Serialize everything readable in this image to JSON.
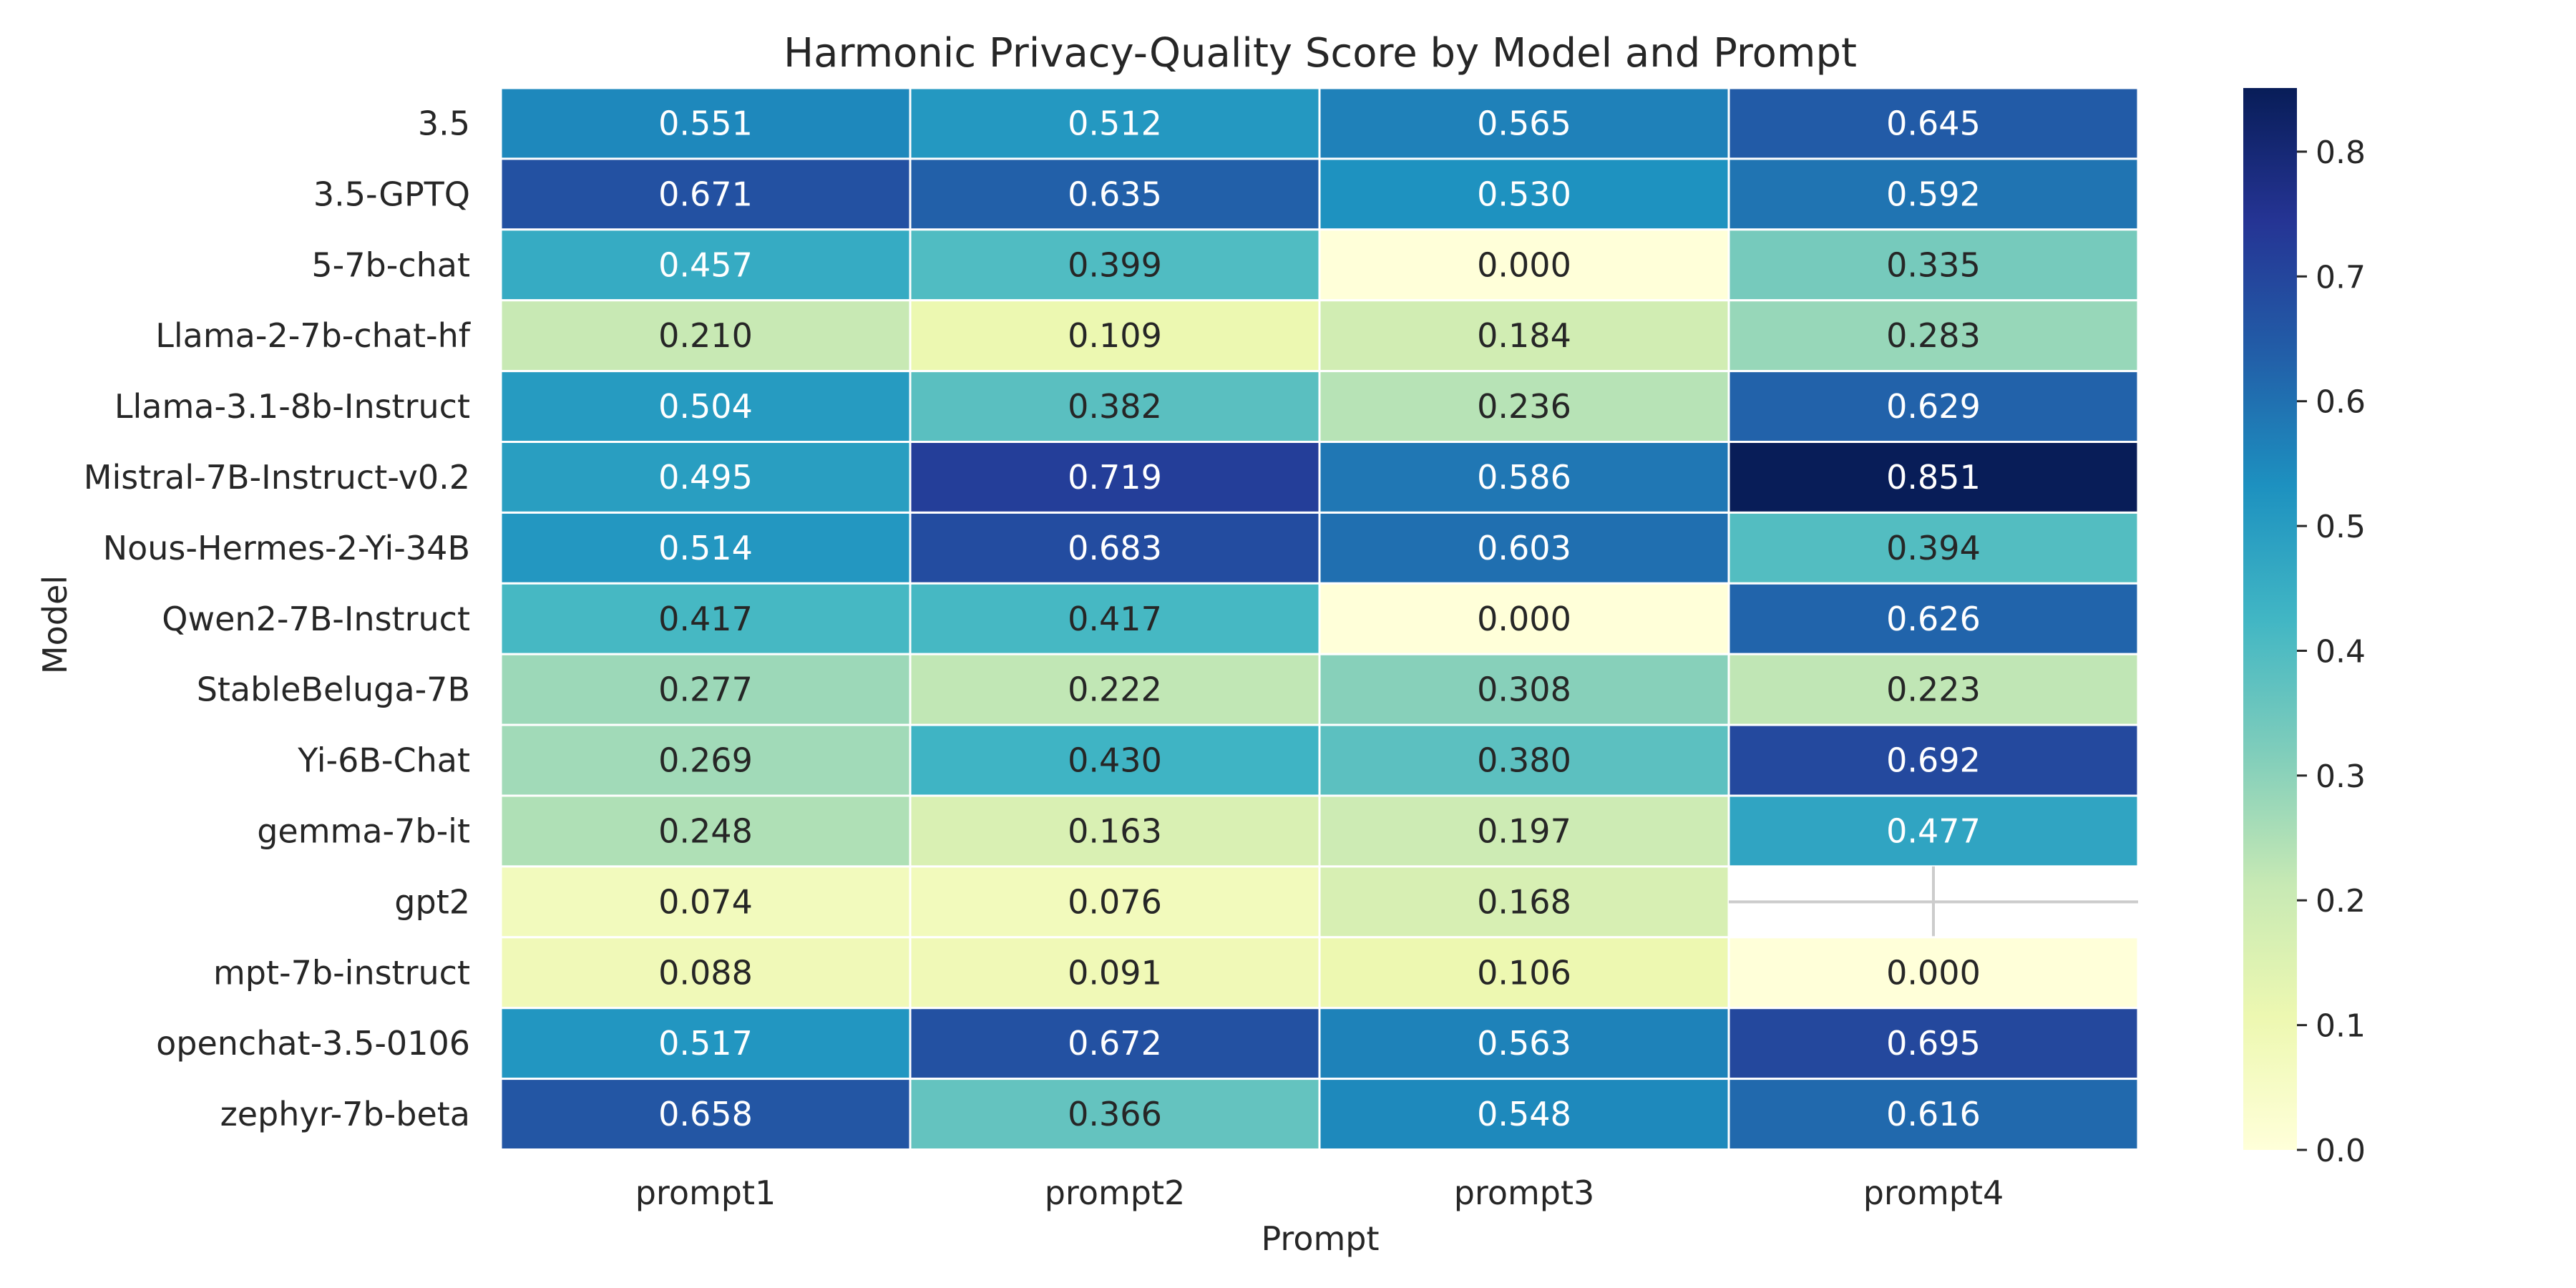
{
  "chart_data": {
    "type": "heatmap",
    "title": "Harmonic Privacy-Quality Score by Model and Prompt",
    "xlabel": "Prompt",
    "ylabel": "Model",
    "columns": [
      "prompt1",
      "prompt2",
      "prompt3",
      "prompt4"
    ],
    "rows": [
      "3.5",
      "3.5-GPTQ",
      "5-7b-chat",
      "Llama-2-7b-chat-hf",
      "Llama-3.1-8b-Instruct",
      "Mistral-7B-Instruct-v0.2",
      "Nous-Hermes-2-Yi-34B",
      "Qwen2-7B-Instruct",
      "StableBeluga-7B",
      "Yi-6B-Chat",
      "gemma-7b-it",
      "gpt2",
      "mpt-7b-instruct",
      "openchat-3.5-0106",
      "zephyr-7b-beta"
    ],
    "values": [
      [
        0.551,
        0.512,
        0.565,
        0.645
      ],
      [
        0.671,
        0.635,
        0.53,
        0.592
      ],
      [
        0.457,
        0.399,
        0.0,
        0.335
      ],
      [
        0.21,
        0.109,
        0.184,
        0.283
      ],
      [
        0.504,
        0.382,
        0.236,
        0.629
      ],
      [
        0.495,
        0.719,
        0.586,
        0.851
      ],
      [
        0.514,
        0.683,
        0.603,
        0.394
      ],
      [
        0.417,
        0.417,
        0.0,
        0.626
      ],
      [
        0.277,
        0.222,
        0.308,
        0.223
      ],
      [
        0.269,
        0.43,
        0.38,
        0.692
      ],
      [
        0.248,
        0.163,
        0.197,
        0.477
      ],
      [
        0.074,
        0.076,
        0.168,
        null
      ],
      [
        0.088,
        0.091,
        0.106,
        0.0
      ],
      [
        0.517,
        0.672,
        0.563,
        0.695
      ],
      [
        0.658,
        0.366,
        0.548,
        0.616
      ]
    ],
    "value_format": "3 decimals",
    "colormap": "YlGnBu",
    "colorbar": {
      "vmin": 0.0,
      "vmax": 0.851,
      "ticks": [
        "0.0",
        "0.1",
        "0.2",
        "0.3",
        "0.4",
        "0.5",
        "0.6",
        "0.7",
        "0.8"
      ]
    },
    "missing_value_color": "#ffffff",
    "cell_border_color": "#ffffff",
    "dark_text_color": "#262626",
    "light_text_color": "#ffffff"
  }
}
